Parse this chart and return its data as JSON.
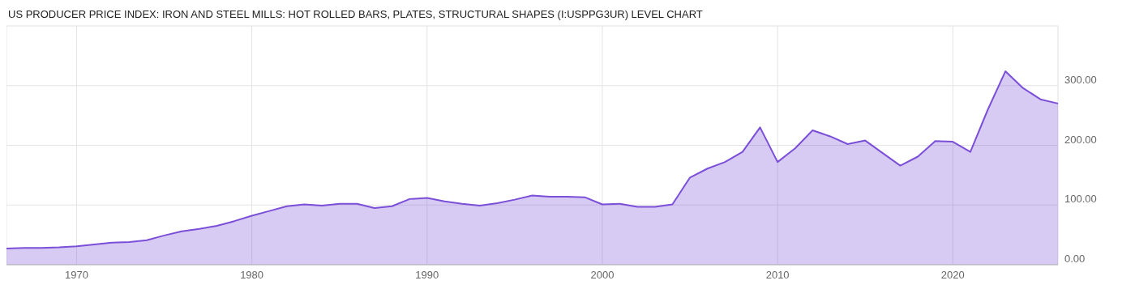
{
  "chart_data": {
    "type": "area",
    "title": "US PRODUCER PRICE INDEX: IRON AND STEEL MILLS: HOT ROLLED BARS, PLATES, STRUCTURAL SHAPES (I:USPPG3UR) LEVEL CHART",
    "x": [
      "1966",
      "1967",
      "1968",
      "1969",
      "1970",
      "1971",
      "1972",
      "1973",
      "1974",
      "1975",
      "1976",
      "1977",
      "1978",
      "1979",
      "1980",
      "1981",
      "1982",
      "1983",
      "1984",
      "1985",
      "1986",
      "1987",
      "1988",
      "1989",
      "1990",
      "1991",
      "1992",
      "1993",
      "1994",
      "1995",
      "1996",
      "1997",
      "1998",
      "1999",
      "2000",
      "2001",
      "2002",
      "2003",
      "2004",
      "2005",
      "2006",
      "2007",
      "2008",
      "2009",
      "2010",
      "2011",
      "2012",
      "2013",
      "2014",
      "2015",
      "2016",
      "2017",
      "2018",
      "2019",
      "2020",
      "2021",
      "2022",
      "2023",
      "2024",
      "2025",
      "2026"
    ],
    "series": [
      {
        "color": "#7b4fd8",
        "values": [
          27,
          28,
          28,
          29,
          31,
          34,
          37,
          38,
          41,
          49,
          56,
          60,
          65,
          73,
          82,
          90,
          98,
          101,
          99,
          102,
          102,
          95,
          98,
          110,
          112,
          106,
          102,
          99,
          103,
          109,
          116,
          114,
          114,
          113,
          101,
          102,
          97,
          97,
          101,
          146,
          161,
          172,
          189,
          230,
          172,
          195,
          225,
          215,
          202,
          208,
          187,
          166,
          181,
          207,
          206,
          189,
          260,
          324,
          296,
          277,
          270
        ]
      }
    ],
    "xlim": [
      "1966",
      "2026"
    ],
    "xticks": [
      "1970",
      "1980",
      "1990",
      "2000",
      "2010",
      "2020"
    ],
    "ylim": [
      0,
      400
    ],
    "yticks": [
      {
        "value": 0,
        "label": "0.00"
      },
      {
        "value": 100,
        "label": "100.00"
      },
      {
        "value": 200,
        "label": "200.00"
      },
      {
        "value": 300,
        "label": "300.00"
      }
    ],
    "grid": true
  }
}
